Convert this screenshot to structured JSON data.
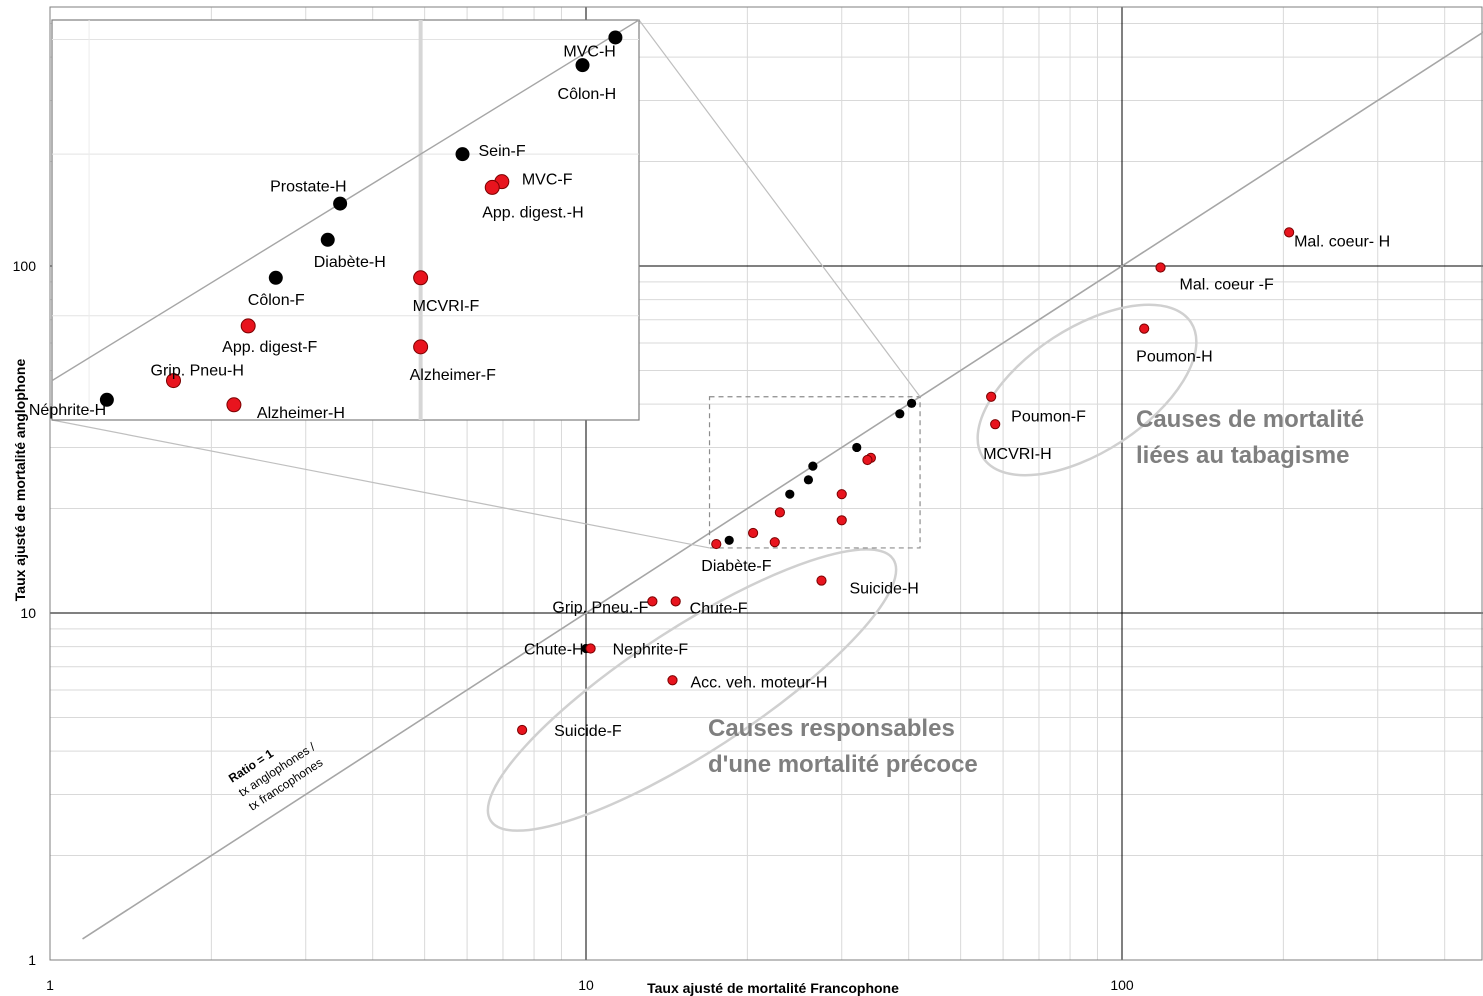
{
  "chart_data": {
    "type": "scatter",
    "scale": "log-log",
    "xlabel": "Taux ajusté de mortalité Francophone",
    "ylabel": "Taux ajusté de mortalité anglophone",
    "xlim": [
      1,
      700
    ],
    "ylim": [
      1,
      500
    ],
    "x_ticks": [
      "1",
      "10",
      "100"
    ],
    "y_ticks": [
      "1",
      "10",
      "100"
    ],
    "grid": true,
    "reference_line": {
      "label_1": "Ratio = 1",
      "label_2": "tx anglophones /",
      "label_3": "tx francophones"
    },
    "group_annotations": [
      {
        "line1": "Causes de  mortalité",
        "line2": "liées au tabagisme"
      },
      {
        "line1": "Causes responsables",
        "line2": "d'une mortalité  précoce"
      }
    ],
    "points": [
      {
        "label": "Mal. coeur- H",
        "x": 205,
        "y": 125,
        "color": "red"
      },
      {
        "label": "Mal. coeur -F",
        "x": 118,
        "y": 99,
        "color": "red"
      },
      {
        "label": "Poumon-H",
        "x": 110,
        "y": 66,
        "color": "red"
      },
      {
        "label": "Poumon-F",
        "x": 57,
        "y": 42,
        "color": "red"
      },
      {
        "label": "MCVRI-H",
        "x": 58,
        "y": 35,
        "color": "red"
      },
      {
        "label": "Diabète-F",
        "x": 17.5,
        "y": 15.8,
        "color": "red"
      },
      {
        "label": "Suicide-H",
        "x": 27.5,
        "y": 12.4,
        "color": "red"
      },
      {
        "label": "Grip. Pneu.-F",
        "x": 13.3,
        "y": 10.8,
        "color": "red"
      },
      {
        "label": "Chute-F",
        "x": 14.7,
        "y": 10.8,
        "color": "red"
      },
      {
        "label": "Chute-H",
        "x": 10.0,
        "y": 7.9,
        "color": "black"
      },
      {
        "label": "Nephrite-F",
        "x": 10.2,
        "y": 7.9,
        "color": "red"
      },
      {
        "label": "Acc. veh. moteur-H",
        "x": 14.5,
        "y": 6.4,
        "color": "red"
      },
      {
        "label": "Suicide-F",
        "x": 7.6,
        "y": 4.6,
        "color": "red"
      }
    ],
    "zoom_points": [
      {
        "label": "MVC-H",
        "x": 40.5,
        "y": 40.2,
        "color": "black"
      },
      {
        "label": "Côlon-H",
        "x": 38.5,
        "y": 37.5,
        "color": "black"
      },
      {
        "label": "Sein-F",
        "x": 32.0,
        "y": 30.0,
        "color": "black"
      },
      {
        "label": "MVC-F",
        "x": 34.0,
        "y": 28.0,
        "color": "red"
      },
      {
        "label": "App. digest.-H",
        "x": 33.5,
        "y": 27.6,
        "color": "red"
      },
      {
        "label": "Prostate-H",
        "x": 26.5,
        "y": 26.5,
        "color": "black"
      },
      {
        "label": "Diabète-H",
        "x": 26.0,
        "y": 24.2,
        "color": "black"
      },
      {
        "label": "MCVRI-F",
        "x": 30.0,
        "y": 22.0,
        "color": "red"
      },
      {
        "label": "Côlon-F",
        "x": 24.0,
        "y": 22.0,
        "color": "black"
      },
      {
        "label": "App. digest-F",
        "x": 23.0,
        "y": 19.5,
        "color": "red"
      },
      {
        "label": "Alzheimer-F",
        "x": 30.0,
        "y": 18.5,
        "color": "red"
      },
      {
        "label": "Grip. Pneu-H",
        "x": 20.5,
        "y": 17.0,
        "color": "red"
      },
      {
        "label": "Alzheimer-H",
        "x": 22.5,
        "y": 16.0,
        "color": "red"
      },
      {
        "label": "Néphrite-H",
        "x": 18.5,
        "y": 16.2,
        "color": "black"
      }
    ],
    "colors": {
      "red": "#e8141e",
      "black": "#000000"
    }
  }
}
